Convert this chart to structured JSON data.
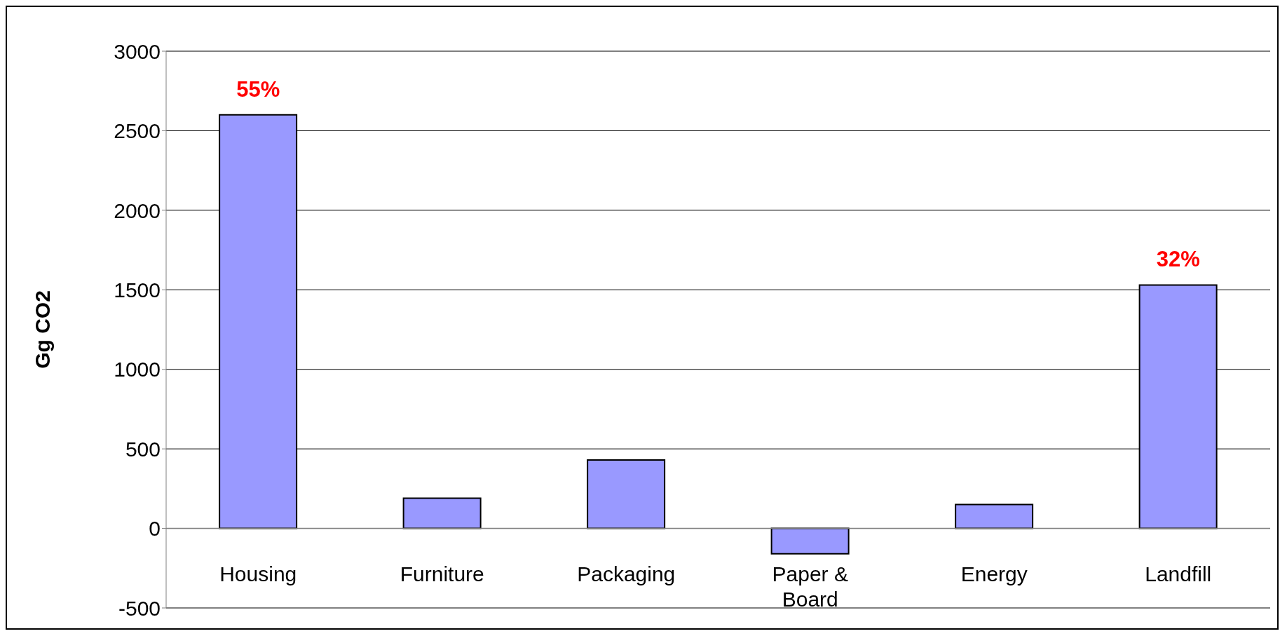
{
  "chart_data": {
    "type": "bar",
    "ylabel": "Gg CO2",
    "categories": [
      "Housing",
      "Furniture",
      "Packaging",
      "Paper & Board",
      "Energy",
      "Landfill"
    ],
    "values": [
      2600,
      190,
      430,
      -160,
      150,
      1530
    ],
    "color": "#9999ff",
    "ylim": [
      -500,
      3000
    ],
    "yticks": [
      -500,
      0,
      500,
      1000,
      1500,
      2000,
      2500,
      3000
    ],
    "grid": "y",
    "annotations": [
      {
        "text": "55%",
        "x": "Housing",
        "y": 2600
      },
      {
        "text": "32%",
        "x": "Landfill",
        "y": 1530
      }
    ]
  }
}
